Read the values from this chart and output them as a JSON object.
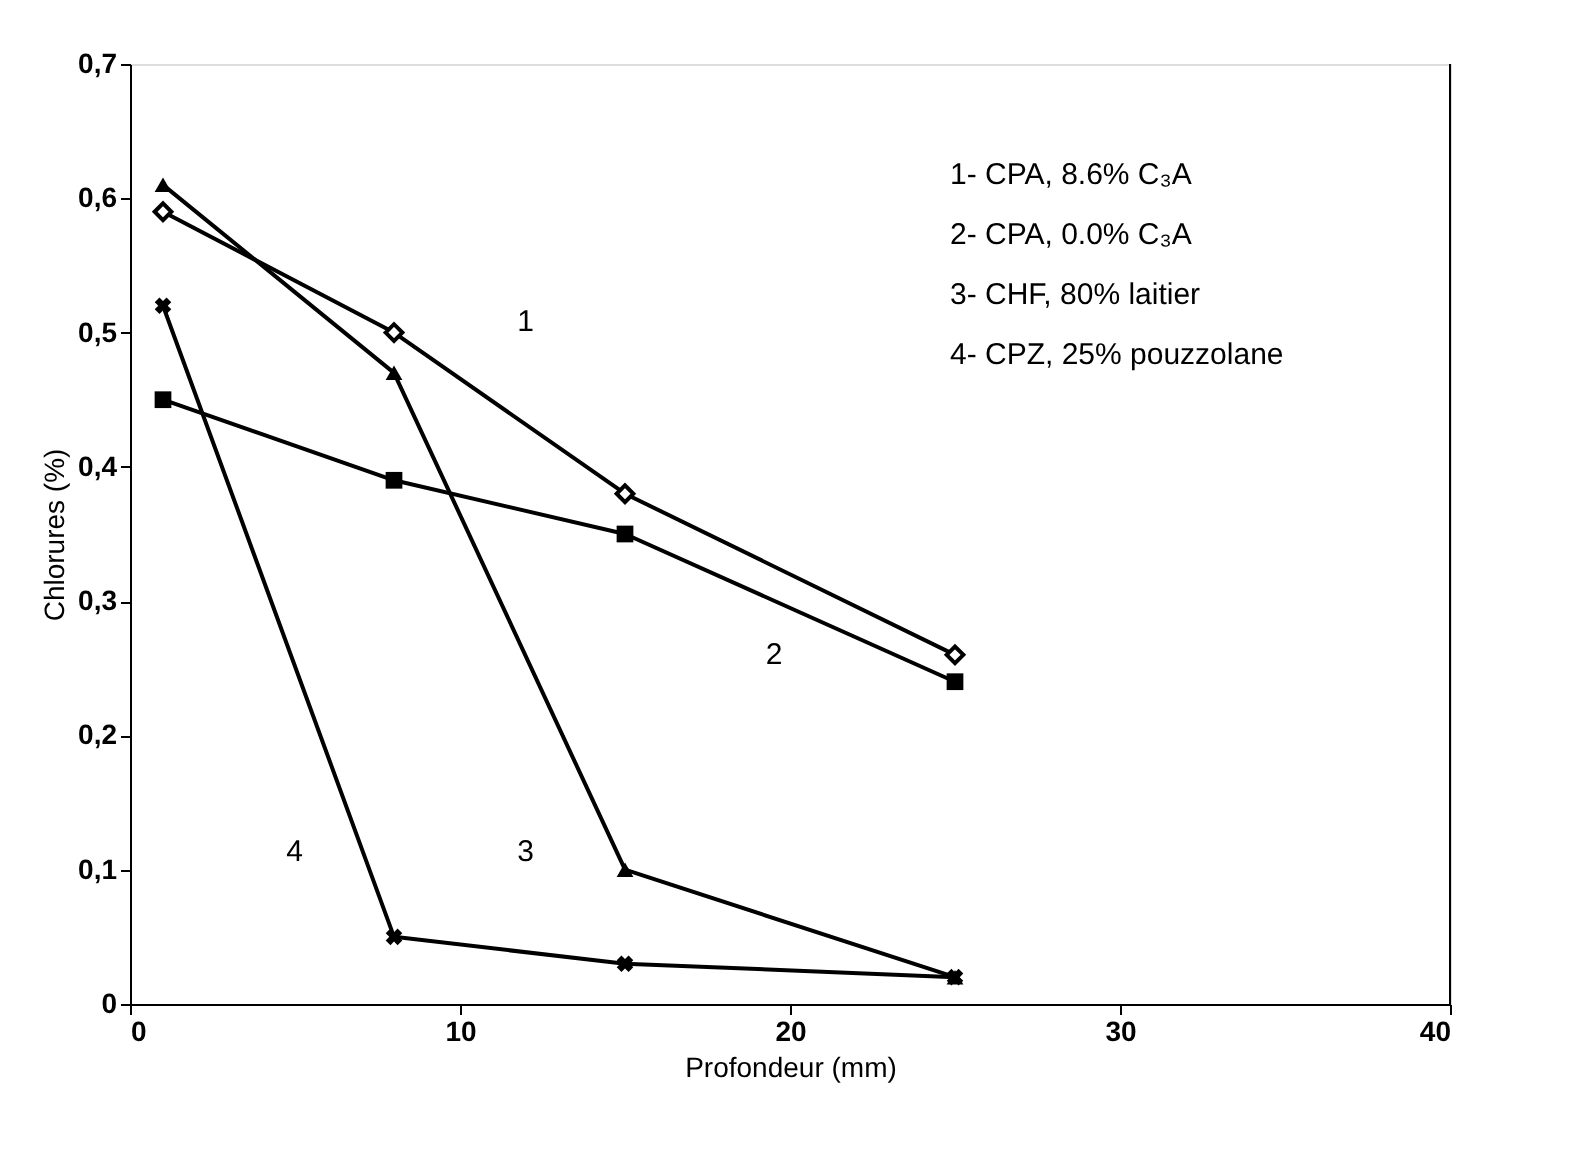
{
  "chart_data": {
    "type": "line",
    "xlabel": "Profondeur (mm)",
    "ylabel": "Chlorures (%)",
    "x": [
      1,
      8,
      15,
      25
    ],
    "series": [
      {
        "name": "1",
        "color": "#000000",
        "marker": "diamond",
        "values": [
          0.59,
          0.5,
          0.38,
          0.26
        ]
      },
      {
        "name": "2",
        "color": "#000000",
        "marker": "square",
        "values": [
          0.45,
          0.39,
          0.35,
          0.24
        ]
      },
      {
        "name": "3",
        "color": "#000000",
        "marker": "triangle",
        "values": [
          0.61,
          0.47,
          0.1,
          0.02
        ]
      },
      {
        "name": "4",
        "color": "#000000",
        "marker": "cross",
        "values": [
          0.52,
          0.05,
          0.03,
          0.02
        ]
      }
    ],
    "xlim": [
      0,
      40
    ],
    "xticks": [
      0,
      10,
      20,
      30,
      40
    ],
    "ylim": [
      0,
      0.7
    ],
    "yticks": [
      {
        "value": 0,
        "label": "0"
      },
      {
        "value": 0.1,
        "label": "0,1"
      },
      {
        "value": 0.2,
        "label": "0,2"
      },
      {
        "value": 0.3,
        "label": "0,3"
      },
      {
        "value": 0.4,
        "label": "0,4"
      },
      {
        "value": 0.5,
        "label": "0,5"
      },
      {
        "value": 0.6,
        "label": "0,6"
      },
      {
        "value": 0.7,
        "label": "0,7"
      }
    ],
    "grid": false,
    "line_style": "solid",
    "annotations": [
      "1- CPA, 8.6% C₃A",
      "2- CPA, 0.0% C₃A",
      "3- CHF, 80% laitier",
      "4- CPZ, 25% pouzzolane"
    ]
  }
}
